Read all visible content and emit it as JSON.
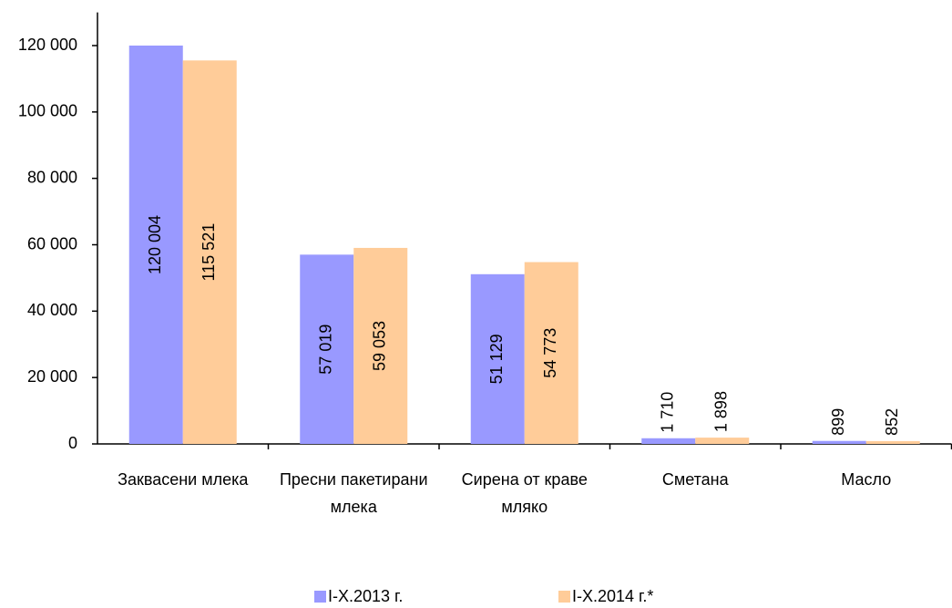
{
  "chart_data": {
    "type": "bar",
    "categories": [
      "Заквасени млека",
      "Пресни пакетирани млека",
      "Сирена от краве мляко",
      "Сметана",
      "Масло"
    ],
    "series": [
      {
        "name": "I-X.2013 г.",
        "color": "#9999ff",
        "values": [
          120004,
          57019,
          51129,
          1710,
          899
        ],
        "value_labels": [
          "120 004",
          "57 019",
          "51 129",
          "1 710",
          "899"
        ]
      },
      {
        "name": "I-X.2014 г.*",
        "color": "#ffcc99",
        "values": [
          115521,
          59053,
          54773,
          1898,
          852
        ],
        "value_labels": [
          "115 521",
          "59 053",
          "54 773",
          "1 898",
          "852"
        ]
      }
    ],
    "ylim": [
      0,
      130000
    ],
    "yticks": [
      0,
      {
        "value": 20000,
        "label": "20 000"
      },
      {
        "value": 40000,
        "label": "40 000"
      },
      {
        "value": 60000,
        "label": "60 000"
      },
      {
        "value": 80000,
        "label": "80 000"
      },
      {
        "value": 100000,
        "label": "100 000"
      },
      {
        "value": 120000,
        "label": "120 000"
      }
    ],
    "grid": false,
    "legend": "bottom"
  }
}
